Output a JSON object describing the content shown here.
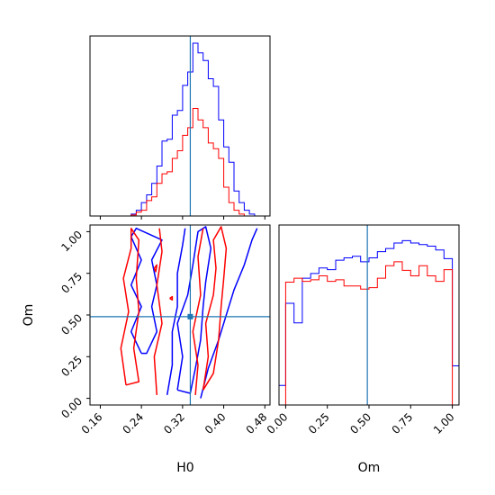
{
  "chart_data": {
    "type": "corner",
    "parameters": [
      "H0",
      "Om"
    ],
    "truths": {
      "H0": 0.335,
      "Om": 0.49
    },
    "colors": {
      "series_a": "#0000ff",
      "series_b": "#ff0000",
      "truth": "#1f77b4"
    },
    "axes": {
      "h0": {
        "label": "H0",
        "lim": [
          0.14,
          0.49
        ],
        "ticks": [
          0.16,
          0.24,
          0.32,
          0.4,
          0.48
        ],
        "tick_labels": [
          "0.16",
          "0.24",
          "0.32",
          "0.40",
          "0.48"
        ]
      },
      "om": {
        "label": "Om",
        "lim": [
          -0.04,
          1.04
        ],
        "ticks": [
          0.0,
          0.25,
          0.5,
          0.75,
          1.0
        ],
        "tick_labels": [
          "0.00",
          "0.25",
          "0.50",
          "0.75",
          "1.00"
        ]
      }
    },
    "hist_h0": {
      "edges": [
        0.16,
        0.17,
        0.18,
        0.19,
        0.2,
        0.21,
        0.22,
        0.23,
        0.24,
        0.25,
        0.26,
        0.27,
        0.28,
        0.29,
        0.3,
        0.31,
        0.32,
        0.33,
        0.34,
        0.35,
        0.36,
        0.37,
        0.38,
        0.39,
        0.4,
        0.41,
        0.42,
        0.43,
        0.44,
        0.45,
        0.46,
        0.47,
        0.48
      ],
      "ymax": 180,
      "series": [
        {
          "color": "blue",
          "values": [
            0,
            0,
            0,
            0,
            0,
            0,
            2,
            6,
            14,
            22,
            34,
            52,
            78,
            80,
            105,
            110,
            136,
            150,
            180,
            170,
            162,
            143,
            135,
            100,
            72,
            56,
            26,
            14,
            6,
            2,
            0,
            0
          ]
        },
        {
          "color": "red",
          "values": [
            0,
            0,
            0,
            0,
            0,
            0,
            1,
            4,
            6,
            16,
            20,
            34,
            44,
            46,
            60,
            68,
            84,
            92,
            112,
            100,
            92,
            76,
            70,
            60,
            30,
            14,
            6,
            2,
            0,
            0,
            0,
            0
          ]
        }
      ]
    },
    "hist_om": {
      "edges": [
        -0.04,
        0.0,
        0.05,
        0.1,
        0.15,
        0.2,
        0.25,
        0.3,
        0.35,
        0.4,
        0.45,
        0.5,
        0.55,
        0.6,
        0.65,
        0.7,
        0.75,
        0.8,
        0.85,
        0.9,
        0.95,
        1.0,
        1.04
      ],
      "ymax": 2.3,
      "series": [
        {
          "color": "blue",
          "values": [
            0.25,
            1.3,
            1.05,
            1.62,
            1.68,
            1.75,
            1.73,
            1.85,
            1.88,
            1.9,
            1.83,
            1.88,
            1.96,
            2.0,
            2.07,
            2.1,
            2.07,
            2.05,
            2.03,
            1.98,
            1.87,
            0.5
          ]
        },
        {
          "color": "red",
          "values": [
            0,
            1.57,
            1.62,
            1.58,
            1.6,
            1.65,
            1.58,
            1.6,
            1.52,
            1.52,
            1.48,
            1.5,
            1.62,
            1.78,
            1.83,
            1.72,
            1.65,
            1.78,
            1.65,
            1.58,
            1.73,
            0
          ]
        }
      ]
    },
    "contours": [
      {
        "color": "blue",
        "points": [
          [
            0.24,
            0.27
          ],
          [
            0.22,
            0.4
          ],
          [
            0.24,
            0.55
          ],
          [
            0.22,
            0.68
          ],
          [
            0.24,
            0.83
          ],
          [
            0.22,
            0.97
          ],
          [
            0.23,
            1.02
          ],
          [
            0.28,
            0.95
          ],
          [
            0.26,
            0.83
          ],
          [
            0.27,
            0.68
          ],
          [
            0.26,
            0.55
          ],
          [
            0.27,
            0.4
          ],
          [
            0.25,
            0.27
          ],
          [
            0.24,
            0.27
          ]
        ]
      },
      {
        "color": "blue",
        "points": [
          [
            0.31,
            0.05
          ],
          [
            0.32,
            0.25
          ],
          [
            0.31,
            0.45
          ],
          [
            0.33,
            0.62
          ],
          [
            0.34,
            0.8
          ],
          [
            0.35,
            1.0
          ],
          [
            0.365,
            1.03
          ],
          [
            0.375,
            0.9
          ],
          [
            0.365,
            0.7
          ],
          [
            0.36,
            0.55
          ],
          [
            0.355,
            0.35
          ],
          [
            0.345,
            0.18
          ],
          [
            0.335,
            0.03
          ],
          [
            0.31,
            0.05
          ]
        ]
      },
      {
        "color": "blue",
        "points": [
          [
            0.29,
            0.02
          ],
          [
            0.3,
            0.2
          ],
          [
            0.3,
            0.4
          ],
          [
            0.31,
            0.55
          ],
          [
            0.31,
            0.75
          ],
          [
            0.32,
            0.92
          ],
          [
            0.325,
            1.02
          ]
        ]
      },
      {
        "color": "blue",
        "points": [
          [
            0.355,
            0.0
          ],
          [
            0.37,
            0.18
          ],
          [
            0.39,
            0.35
          ],
          [
            0.405,
            0.5
          ],
          [
            0.42,
            0.65
          ],
          [
            0.44,
            0.8
          ],
          [
            0.455,
            0.95
          ],
          [
            0.465,
            1.02
          ]
        ]
      },
      {
        "color": "red",
        "points": [
          [
            0.21,
            0.08
          ],
          [
            0.2,
            0.3
          ],
          [
            0.215,
            0.52
          ],
          [
            0.205,
            0.72
          ],
          [
            0.22,
            0.9
          ],
          [
            0.22,
            1.02
          ],
          [
            0.235,
            0.95
          ],
          [
            0.23,
            0.72
          ],
          [
            0.235,
            0.52
          ],
          [
            0.225,
            0.3
          ],
          [
            0.235,
            0.1
          ],
          [
            0.21,
            0.08
          ]
        ]
      },
      {
        "color": "red",
        "points": [
          [
            0.27,
            0.02
          ],
          [
            0.265,
            0.25
          ],
          [
            0.28,
            0.45
          ],
          [
            0.27,
            0.68
          ],
          [
            0.28,
            0.88
          ],
          [
            0.275,
            1.02
          ]
        ]
      },
      {
        "color": "red",
        "points": [
          [
            0.345,
            0.02
          ],
          [
            0.35,
            0.2
          ],
          [
            0.34,
            0.4
          ],
          [
            0.355,
            0.62
          ],
          [
            0.35,
            0.85
          ],
          [
            0.36,
            1.02
          ]
        ]
      },
      {
        "color": "red",
        "points": [
          [
            0.36,
            0.05
          ],
          [
            0.37,
            0.25
          ],
          [
            0.365,
            0.45
          ],
          [
            0.38,
            0.62
          ],
          [
            0.385,
            0.78
          ],
          [
            0.38,
            0.95
          ],
          [
            0.395,
            1.03
          ],
          [
            0.405,
            0.9
          ],
          [
            0.4,
            0.72
          ],
          [
            0.395,
            0.55
          ],
          [
            0.39,
            0.35
          ],
          [
            0.38,
            0.15
          ],
          [
            0.36,
            0.05
          ]
        ]
      },
      {
        "color": "red",
        "points": [
          [
            0.295,
            0.6
          ],
          [
            0.3,
            0.61
          ],
          [
            0.3,
            0.59
          ],
          [
            0.295,
            0.6
          ]
        ]
      },
      {
        "color": "red",
        "points": [
          [
            0.265,
            0.78
          ],
          [
            0.27,
            0.8
          ],
          [
            0.268,
            0.76
          ],
          [
            0.265,
            0.78
          ]
        ]
      }
    ]
  }
}
